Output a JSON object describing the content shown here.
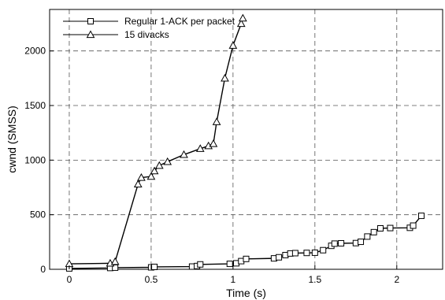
{
  "chart_data": {
    "type": "line",
    "xlabel": "Time (s)",
    "ylabel": "cwnd (SMSS)",
    "xlim": [
      -0.12,
      2.28
    ],
    "ylim": [
      0,
      2380
    ],
    "xticks": [
      0,
      0.5,
      1,
      1.5,
      2
    ],
    "xtick_labels": [
      "0",
      "0.5",
      "1",
      "1.5",
      "2"
    ],
    "yticks": [
      0,
      500,
      1000,
      1500,
      2000
    ],
    "ytick_labels": [
      "0",
      "500",
      "1000",
      "1500",
      "2000"
    ],
    "grid": true,
    "legend_position": "top-left",
    "series": [
      {
        "name": "Regular 1-ACK per packet",
        "marker": "square",
        "color": "#000000",
        "x": [
          0.0,
          0.25,
          0.28,
          0.5,
          0.52,
          0.75,
          0.78,
          0.8,
          0.98,
          1.02,
          1.05,
          1.08,
          1.25,
          1.28,
          1.32,
          1.35,
          1.38,
          1.45,
          1.5,
          1.55,
          1.6,
          1.62,
          1.66,
          1.75,
          1.78,
          1.82,
          1.86,
          1.9,
          1.96,
          2.08,
          2.1,
          2.15
        ],
        "y": [
          8,
          12,
          15,
          18,
          22,
          25,
          30,
          45,
          50,
          55,
          75,
          95,
          100,
          110,
          130,
          145,
          148,
          150,
          152,
          175,
          215,
          235,
          238,
          240,
          252,
          300,
          340,
          375,
          378,
          380,
          400,
          490
        ]
      },
      {
        "name": "15 divacks",
        "marker": "triangle",
        "color": "#000000",
        "x": [
          0.0,
          0.25,
          0.28,
          0.42,
          0.44,
          0.5,
          0.52,
          0.55,
          0.6,
          0.7,
          0.8,
          0.85,
          0.88,
          0.9,
          0.95,
          1.0,
          1.05,
          1.06
        ],
        "y": [
          50,
          55,
          70,
          780,
          840,
          850,
          900,
          950,
          985,
          1050,
          1105,
          1130,
          1150,
          1350,
          1750,
          2050,
          2250,
          2300
        ]
      }
    ]
  }
}
